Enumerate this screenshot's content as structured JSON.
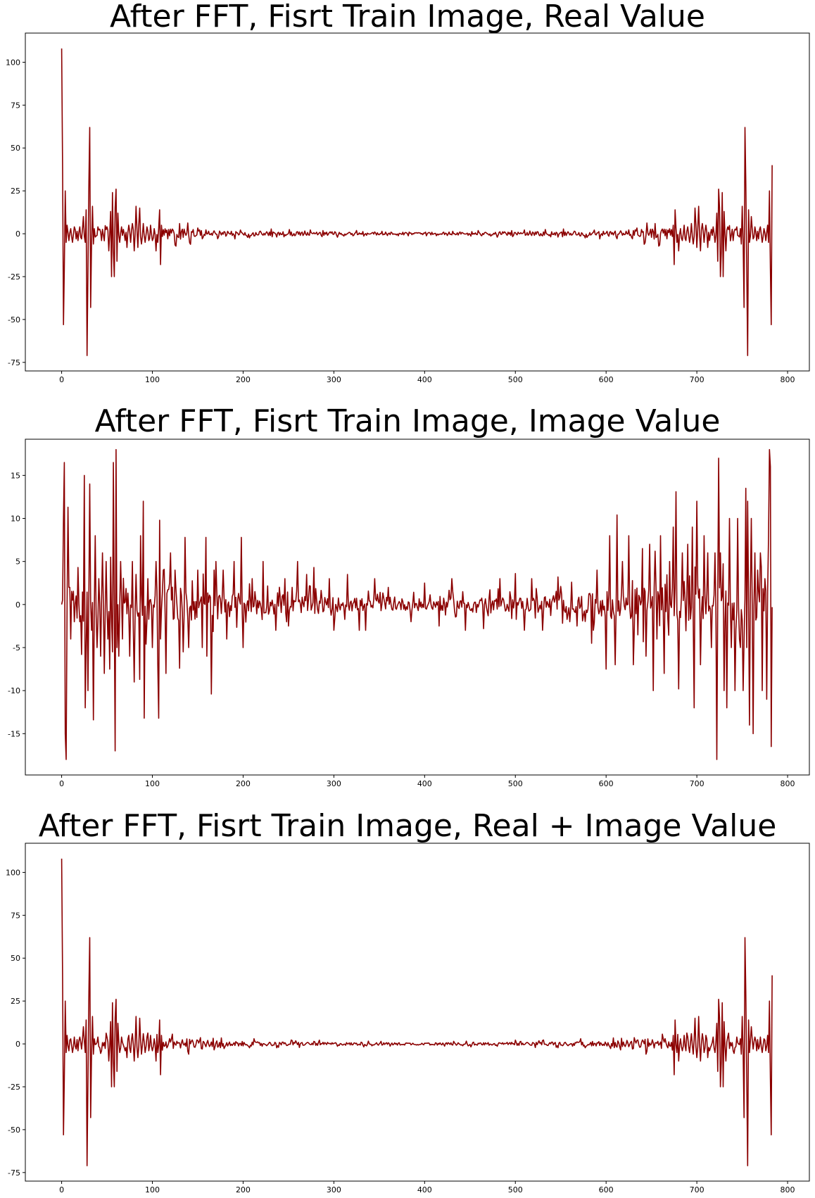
{
  "chart_data": [
    {
      "type": "line",
      "title": "After FFT, Fisrt Train Image, Real Value",
      "xlim": [
        -40,
        824
      ],
      "ylim": [
        -80,
        117
      ],
      "xticks": [
        "0",
        "100",
        "200",
        "300",
        "400",
        "500",
        "600",
        "700",
        "800"
      ],
      "yticks": [
        "100",
        "75",
        "50",
        "25",
        "0",
        "-25",
        "-50",
        "-75"
      ],
      "grid": false,
      "color": "#8b0000",
      "n": 784,
      "symmetric": true,
      "spikes": [
        [
          0,
          108
        ],
        [
          1,
          40
        ],
        [
          2,
          -53
        ],
        [
          3,
          -20
        ],
        [
          4,
          25
        ],
        [
          5,
          -5
        ],
        [
          6,
          5
        ],
        [
          8,
          -4
        ],
        [
          10,
          3
        ],
        [
          12,
          -5
        ],
        [
          14,
          4
        ],
        [
          16,
          -3
        ],
        [
          18,
          -4
        ],
        [
          20,
          4
        ],
        [
          22,
          -3
        ],
        [
          24,
          10
        ],
        [
          26,
          -5
        ],
        [
          27,
          14
        ],
        [
          28,
          -71
        ],
        [
          29,
          -20
        ],
        [
          30,
          30
        ],
        [
          31,
          62
        ],
        [
          32,
          -43
        ],
        [
          33,
          -5
        ],
        [
          34,
          16
        ],
        [
          35,
          -6
        ],
        [
          36,
          3
        ],
        [
          40,
          4
        ],
        [
          44,
          -4
        ],
        [
          50,
          4
        ],
        [
          52,
          -10
        ],
        [
          54,
          13
        ],
        [
          55,
          -25
        ],
        [
          56,
          24
        ],
        [
          57,
          -10
        ],
        [
          58,
          -25
        ],
        [
          59,
          15
        ],
        [
          60,
          26
        ],
        [
          61,
          -16
        ],
        [
          62,
          12
        ],
        [
          64,
          -5
        ],
        [
          66,
          4
        ],
        [
          70,
          -4
        ],
        [
          72,
          -8
        ],
        [
          74,
          5
        ],
        [
          76,
          -5
        ],
        [
          78,
          6
        ],
        [
          80,
          -10
        ],
        [
          82,
          16
        ],
        [
          84,
          -8
        ],
        [
          86,
          15
        ],
        [
          88,
          -6
        ],
        [
          90,
          6
        ],
        [
          92,
          -5
        ],
        [
          94,
          4
        ],
        [
          96,
          -4
        ],
        [
          98,
          5
        ],
        [
          100,
          -4
        ],
        [
          102,
          3
        ],
        [
          104,
          -10
        ],
        [
          106,
          -5
        ],
        [
          108,
          14
        ],
        [
          109,
          -18
        ],
        [
          110,
          5
        ]
      ],
      "noise": [
        [
          0,
          4
        ],
        [
          110,
          4
        ],
        [
          130,
          5
        ],
        [
          160,
          3
        ],
        [
          200,
          2
        ],
        [
          260,
          1.5
        ],
        [
          330,
          1.2
        ],
        [
          392,
          1
        ]
      ]
    },
    {
      "type": "line",
      "title": "After FFT, Fisrt Train Image, Image Value",
      "xlim": [
        -40,
        824
      ],
      "ylim": [
        -19.8,
        19.2
      ],
      "xticks": [
        "0",
        "100",
        "200",
        "300",
        "400",
        "500",
        "600",
        "700",
        "800"
      ],
      "yticks": [
        "15",
        "10",
        "5",
        "0",
        "-5",
        "-10",
        "-15"
      ],
      "grid": false,
      "color": "#8b0000",
      "n": 784,
      "symmetric": false,
      "spikes": [
        [
          0,
          0
        ],
        [
          1,
          0.5
        ],
        [
          2,
          10
        ],
        [
          3,
          16.5
        ],
        [
          4,
          -15
        ],
        [
          5,
          -18
        ],
        [
          6,
          0
        ],
        [
          7,
          11.3
        ],
        [
          9,
          2
        ],
        [
          10,
          -4
        ],
        [
          12,
          0.5
        ],
        [
          14,
          -2
        ],
        [
          16,
          1
        ],
        [
          18,
          4.3
        ],
        [
          20,
          -2
        ],
        [
          22,
          -5.8
        ],
        [
          25,
          15
        ],
        [
          26,
          -12
        ],
        [
          27,
          -5
        ],
        [
          29,
          -10
        ],
        [
          31,
          14
        ],
        [
          33,
          -3
        ],
        [
          35,
          -13.4
        ],
        [
          37,
          8
        ],
        [
          39,
          -5
        ],
        [
          41,
          3
        ],
        [
          43,
          -6
        ],
        [
          45,
          6
        ],
        [
          47,
          -8
        ],
        [
          49,
          5
        ],
        [
          51,
          -4
        ],
        [
          53,
          -7.5
        ],
        [
          54,
          5.5
        ],
        [
          56,
          -5.5
        ],
        [
          57,
          16.5
        ],
        [
          59,
          -17
        ],
        [
          60,
          18
        ],
        [
          61,
          -5
        ],
        [
          63,
          -6
        ],
        [
          65,
          5
        ],
        [
          67,
          -4
        ],
        [
          75,
          -6
        ],
        [
          78,
          5
        ],
        [
          80,
          -9
        ],
        [
          82,
          3.5
        ],
        [
          86,
          -8.7
        ],
        [
          87,
          8
        ],
        [
          90,
          12
        ],
        [
          91,
          -13.2
        ],
        [
          95,
          3
        ],
        [
          100,
          -5
        ],
        [
          104,
          5
        ],
        [
          106,
          -7
        ],
        [
          107,
          -13.2
        ],
        [
          108,
          9.8
        ],
        [
          109,
          -4
        ],
        [
          112,
          4
        ],
        [
          115,
          -8
        ],
        [
          120,
          6
        ],
        [
          125,
          4
        ],
        [
          130,
          -7.4
        ],
        [
          134,
          -5.5
        ],
        [
          136,
          7.8
        ],
        [
          140,
          -5
        ],
        [
          150,
          4
        ],
        [
          155,
          -5
        ],
        [
          159,
          7.8
        ],
        [
          160,
          -6
        ],
        [
          165,
          -10.4
        ],
        [
          168,
          4
        ],
        [
          170,
          5
        ],
        [
          178,
          4
        ],
        [
          182,
          -4
        ],
        [
          190,
          5
        ],
        [
          198,
          7.8
        ],
        [
          200,
          -5
        ],
        [
          210,
          3
        ],
        [
          222,
          5
        ],
        [
          236,
          -3
        ],
        [
          246,
          3
        ],
        [
          250,
          -2.5
        ],
        [
          260,
          5
        ],
        [
          270,
          3.5
        ],
        [
          278,
          4.3
        ],
        [
          295,
          3
        ],
        [
          300,
          -3
        ],
        [
          315,
          3.5
        ],
        [
          328,
          -3
        ],
        [
          335,
          -3
        ],
        [
          345,
          3
        ],
        [
          360,
          2
        ],
        [
          385,
          -2
        ],
        [
          400,
          2.5
        ],
        [
          416,
          -2.5
        ],
        [
          430,
          3
        ],
        [
          445,
          -3
        ],
        [
          465,
          -2.8
        ],
        [
          483,
          3
        ],
        [
          500,
          3.6
        ],
        [
          510,
          -3
        ],
        [
          518,
          3
        ],
        [
          530,
          -3
        ],
        [
          547,
          3.2
        ],
        [
          560,
          -2
        ],
        [
          568,
          -2.5
        ],
        [
          584,
          -4.5
        ],
        [
          586,
          -3
        ],
        [
          590,
          4
        ],
        [
          600,
          -7.5
        ],
        [
          604,
          8
        ],
        [
          610,
          -7
        ],
        [
          612,
          10.4
        ],
        [
          618,
          5
        ],
        [
          625,
          8
        ],
        [
          630,
          -7
        ],
        [
          640,
          6.5
        ],
        [
          644,
          -6
        ],
        [
          648,
          7
        ],
        [
          652,
          -10
        ],
        [
          654,
          6.2
        ],
        [
          656,
          -4
        ],
        [
          660,
          8
        ],
        [
          664,
          -8
        ],
        [
          670,
          5
        ],
        [
          674,
          9
        ],
        [
          677,
          13.1
        ],
        [
          680,
          -9.8
        ],
        [
          684,
          6
        ],
        [
          690,
          7
        ],
        [
          695,
          9
        ],
        [
          697,
          -12
        ],
        [
          700,
          12
        ],
        [
          704,
          -7
        ],
        [
          708,
          8
        ],
        [
          712,
          6
        ],
        [
          716,
          -5
        ],
        [
          720,
          6
        ],
        [
          722,
          -18
        ],
        [
          724,
          17
        ],
        [
          726,
          6
        ],
        [
          730,
          -10
        ],
        [
          733,
          -12
        ],
        [
          736,
          10
        ],
        [
          738,
          -5
        ],
        [
          742,
          -10
        ],
        [
          745,
          10
        ],
        [
          748,
          -5
        ],
        [
          751,
          -10
        ],
        [
          754,
          13.5
        ],
        [
          755,
          -5
        ],
        [
          756,
          12
        ],
        [
          758,
          -14
        ],
        [
          760,
          10
        ],
        [
          762,
          -15
        ],
        [
          764,
          6
        ],
        [
          767,
          4
        ],
        [
          770,
          6
        ],
        [
          772,
          -10
        ],
        [
          775,
          3
        ],
        [
          777,
          -11
        ],
        [
          779,
          8
        ],
        [
          780,
          18
        ],
        [
          781,
          16
        ],
        [
          782,
          -16.5
        ],
        [
          783,
          -0.3
        ]
      ],
      "noise": [
        [
          0,
          3
        ],
        [
          120,
          3
        ],
        [
          200,
          1.8
        ],
        [
          300,
          1.2
        ],
        [
          390,
          1
        ],
        [
          500,
          1.2
        ],
        [
          580,
          1.8
        ],
        [
          640,
          3
        ],
        [
          783,
          3
        ]
      ]
    },
    {
      "type": "line",
      "title": "After FFT, Fisrt Train Image, Real + Image Value",
      "xlim": [
        -40,
        824
      ],
      "ylim": [
        -80,
        117
      ],
      "xticks": [
        "0",
        "100",
        "200",
        "300",
        "400",
        "500",
        "600",
        "700",
        "800"
      ],
      "yticks": [
        "100",
        "75",
        "50",
        "25",
        "0",
        "-25",
        "-50",
        "-75"
      ],
      "grid": false,
      "color": "#8b0000",
      "n": 784,
      "symmetric": true,
      "spikes": [
        [
          0,
          108
        ],
        [
          1,
          40
        ],
        [
          2,
          -53
        ],
        [
          3,
          -20
        ],
        [
          4,
          25
        ],
        [
          5,
          -5
        ],
        [
          6,
          5
        ],
        [
          8,
          -4
        ],
        [
          10,
          3
        ],
        [
          12,
          -5
        ],
        [
          14,
          4
        ],
        [
          16,
          -3
        ],
        [
          18,
          -4
        ],
        [
          20,
          4
        ],
        [
          22,
          -3
        ],
        [
          24,
          10
        ],
        [
          26,
          -5
        ],
        [
          27,
          14
        ],
        [
          28,
          -71
        ],
        [
          29,
          -20
        ],
        [
          30,
          30
        ],
        [
          31,
          62
        ],
        [
          32,
          -43
        ],
        [
          33,
          -5
        ],
        [
          34,
          16
        ],
        [
          35,
          -6
        ],
        [
          36,
          3
        ],
        [
          40,
          4
        ],
        [
          44,
          -4
        ],
        [
          50,
          4
        ],
        [
          52,
          -10
        ],
        [
          54,
          13
        ],
        [
          55,
          -25
        ],
        [
          56,
          24
        ],
        [
          57,
          -10
        ],
        [
          58,
          -25
        ],
        [
          59,
          15
        ],
        [
          60,
          26
        ],
        [
          61,
          -16
        ],
        [
          62,
          12
        ],
        [
          64,
          -5
        ],
        [
          66,
          4
        ],
        [
          70,
          -4
        ],
        [
          72,
          -8
        ],
        [
          74,
          5
        ],
        [
          76,
          -5
        ],
        [
          78,
          6
        ],
        [
          80,
          -10
        ],
        [
          82,
          16
        ],
        [
          84,
          -8
        ],
        [
          86,
          15
        ],
        [
          88,
          -6
        ],
        [
          90,
          6
        ],
        [
          92,
          -5
        ],
        [
          94,
          4
        ],
        [
          96,
          -4
        ],
        [
          98,
          5
        ],
        [
          100,
          -4
        ],
        [
          102,
          3
        ],
        [
          104,
          -10
        ],
        [
          106,
          -5
        ],
        [
          108,
          14
        ],
        [
          109,
          -18
        ],
        [
          110,
          5
        ]
      ],
      "noise": [
        [
          0,
          4
        ],
        [
          110,
          4
        ],
        [
          130,
          5
        ],
        [
          160,
          3
        ],
        [
          200,
          2
        ],
        [
          260,
          1.5
        ],
        [
          330,
          1.2
        ],
        [
          392,
          1
        ]
      ]
    }
  ]
}
